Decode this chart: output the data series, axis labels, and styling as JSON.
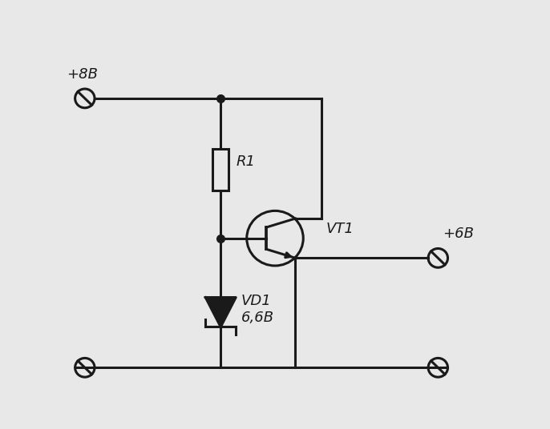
{
  "bg_color": "#e8e8e8",
  "line_color": "#1a1a1a",
  "line_width": 2.2,
  "labels": {
    "plus8v": "+8B",
    "plus6v": "+6B",
    "R1": "R1",
    "VT1": "VT1",
    "VD1": "VD1",
    "VD1_val": "6,6B"
  },
  "font_size": 13,
  "font_style": "italic",
  "xlim": [
    0,
    10
  ],
  "ylim": [
    0,
    8
  ]
}
